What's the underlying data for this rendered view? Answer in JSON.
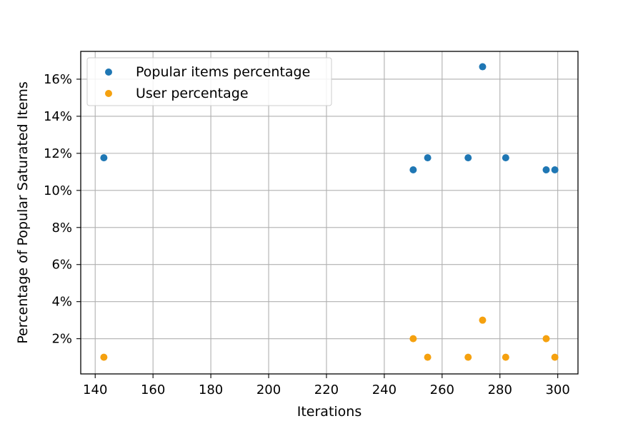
{
  "chart_data": {
    "type": "scatter",
    "xlabel": "Iterations",
    "ylabel": "Percentage of Popular Saturated Items",
    "xlim": [
      135,
      307
    ],
    "ylim": [
      0.1,
      17.5
    ],
    "x_ticks": [
      140,
      160,
      180,
      200,
      220,
      240,
      260,
      280,
      300
    ],
    "y_ticks": [
      2,
      4,
      6,
      8,
      10,
      12,
      14,
      16
    ],
    "y_tick_labels": [
      "2%",
      "4%",
      "6%",
      "8%",
      "10%",
      "12%",
      "14%",
      "16%"
    ],
    "grid": true,
    "legend_position": "top-left",
    "series": [
      {
        "name": "Popular items percentage",
        "color": "#1f77b4",
        "points": [
          {
            "x": 143,
            "y": 11.76
          },
          {
            "x": 250,
            "y": 11.11
          },
          {
            "x": 255,
            "y": 11.76
          },
          {
            "x": 269,
            "y": 11.76
          },
          {
            "x": 274,
            "y": 16.67
          },
          {
            "x": 282,
            "y": 11.76
          },
          {
            "x": 296,
            "y": 11.11
          },
          {
            "x": 299,
            "y": 11.11
          }
        ]
      },
      {
        "name": "User percentage",
        "color": "#f5a10f",
        "points": [
          {
            "x": 143,
            "y": 1.0
          },
          {
            "x": 250,
            "y": 2.0
          },
          {
            "x": 255,
            "y": 1.0
          },
          {
            "x": 269,
            "y": 1.0
          },
          {
            "x": 274,
            "y": 3.0
          },
          {
            "x": 282,
            "y": 1.0
          },
          {
            "x": 296,
            "y": 2.0
          },
          {
            "x": 299,
            "y": 1.0
          }
        ]
      }
    ]
  }
}
